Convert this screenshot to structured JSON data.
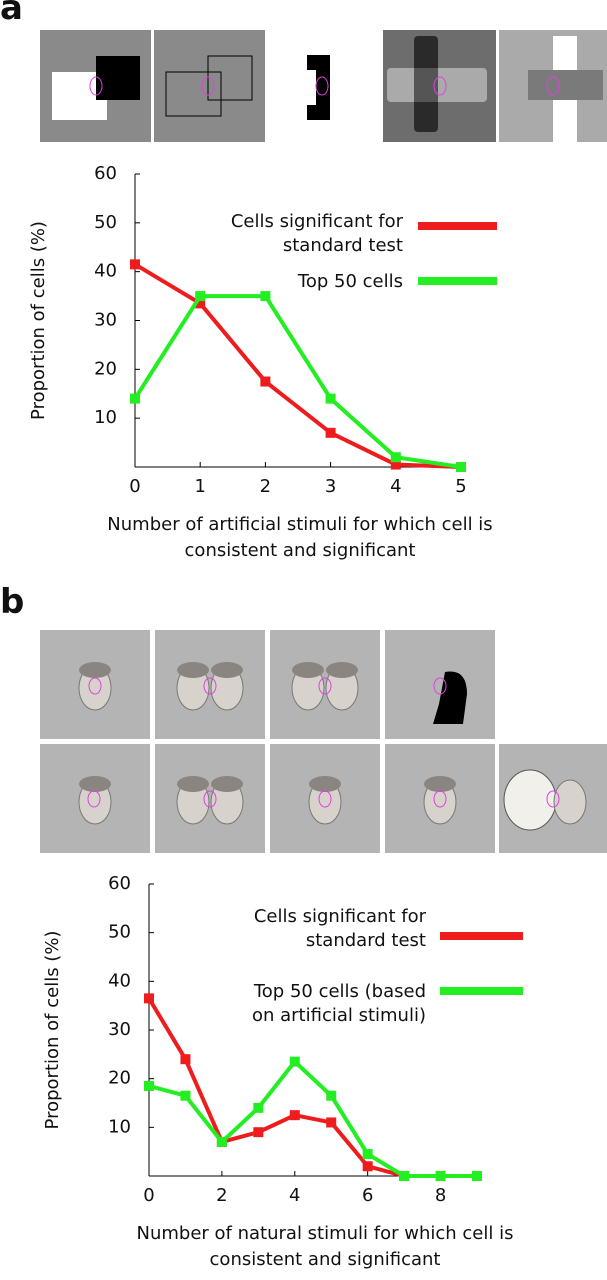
{
  "chart_data": [
    {
      "type": "line",
      "panel": "a",
      "x": [
        0,
        1,
        2,
        3,
        4,
        5
      ],
      "xlim": [
        0,
        5
      ],
      "xticks": [
        0,
        1,
        2,
        3,
        4,
        5
      ],
      "ylim": [
        0,
        60
      ],
      "yticks": [
        10,
        20,
        30,
        40,
        50,
        60
      ],
      "ylabel": "Proportion of cells (%)",
      "xlabel": "Number of artificial stimuli for which cell is consistent and significant",
      "series": [
        {
          "name": "Cells significant for standard test",
          "color": "#ee1c1c",
          "values": [
            41.5,
            33.5,
            17.5,
            7,
            0.5,
            0
          ]
        },
        {
          "name": "Top 50 cells",
          "color": "#22ee22",
          "values": [
            14,
            35,
            35,
            14,
            2,
            0
          ]
        }
      ]
    },
    {
      "type": "line",
      "panel": "b",
      "x": [
        0,
        1,
        2,
        3,
        4,
        5,
        6,
        7,
        8,
        9
      ],
      "xlim": [
        0,
        9
      ],
      "xticks": [
        0,
        2,
        4,
        6,
        8
      ],
      "ylim": [
        0,
        60
      ],
      "yticks": [
        10,
        20,
        30,
        40,
        50,
        60
      ],
      "ylabel": "Proportion of cells (%)",
      "xlabel": "Number of natural stimuli for which cell is consistent and significant",
      "series": [
        {
          "name": "Cells significant for standard test",
          "color": "#ee1c1c",
          "values": [
            36.5,
            24,
            7,
            9,
            12.5,
            11,
            2,
            0,
            null,
            null
          ]
        },
        {
          "name": "Top 50 cells (based on artificial stimuli)",
          "color": "#22ee22",
          "values": [
            18.5,
            16.5,
            7,
            14,
            23.5,
            16.5,
            4.5,
            0,
            0,
            0
          ]
        }
      ]
    }
  ]
}
